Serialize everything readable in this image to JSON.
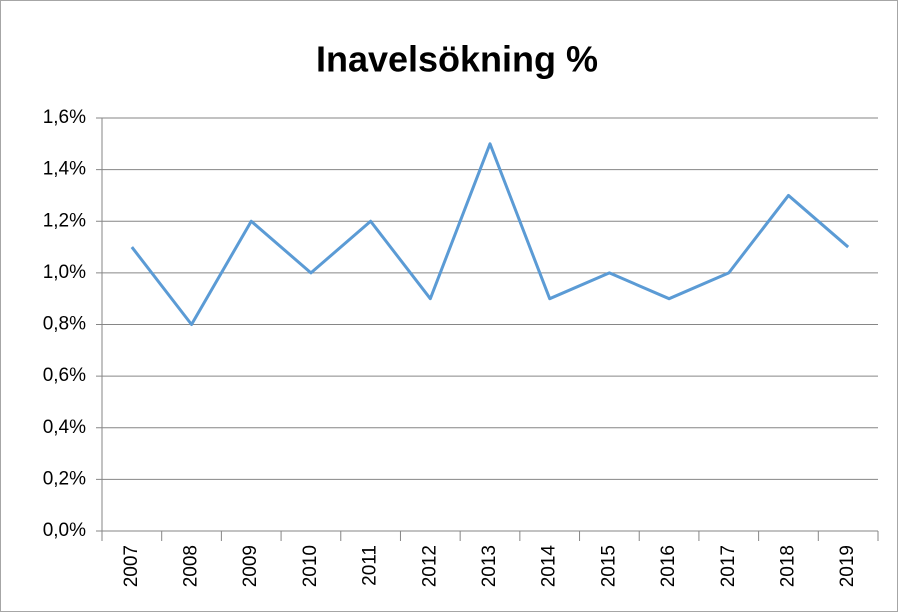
{
  "chart_data": {
    "type": "line",
    "title": "Inavelsökning %",
    "categories": [
      "2007",
      "2008",
      "2009",
      "2010",
      "2011",
      "2012",
      "2013",
      "2014",
      "2015",
      "2016",
      "2017",
      "2018",
      "2019"
    ],
    "values": [
      1.1,
      0.8,
      1.2,
      1.0,
      1.2,
      0.9,
      1.5,
      0.9,
      1.0,
      0.9,
      1.0,
      1.3,
      1.1
    ],
    "color": "#5b9bd5",
    "ylim": [
      0,
      1.6
    ],
    "yticks": [
      {
        "value": 0,
        "label": "0,0%"
      },
      {
        "value": 0.2,
        "label": "0,2%"
      },
      {
        "value": 0.4,
        "label": "0,4%"
      },
      {
        "value": 0.6,
        "label": "0,6%"
      },
      {
        "value": 0.8,
        "label": "0,8%"
      },
      {
        "value": 1.0,
        "label": "1,0%"
      },
      {
        "value": 1.2,
        "label": "1,2%"
      },
      {
        "value": 1.4,
        "label": "1,4%"
      },
      {
        "value": 1.6,
        "label": "1,6%"
      }
    ],
    "grid": true
  }
}
